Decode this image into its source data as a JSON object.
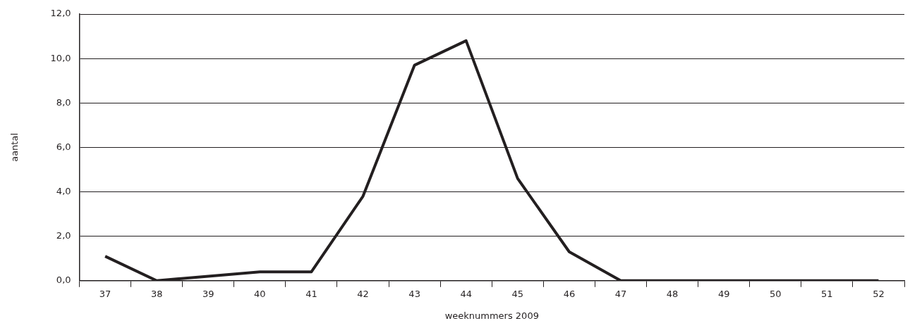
{
  "chart_data": {
    "type": "line",
    "xlabel": "weeknummers 2009",
    "ylabel": "aantal",
    "categories": [
      "37",
      "38",
      "39",
      "40",
      "41",
      "42",
      "43",
      "44",
      "45",
      "46",
      "47",
      "48",
      "49",
      "50",
      "51",
      "52"
    ],
    "series": [
      {
        "color": "#231f20",
        "values": [
          1.1,
          0,
          0.2,
          0.4,
          0.4,
          3.8,
          9.7,
          10.8,
          4.6,
          1.3,
          0,
          0,
          0,
          0,
          0,
          0
        ]
      }
    ],
    "ylim": [
      0,
      12
    ],
    "yticks": [
      {
        "value": 0,
        "label": "0,0"
      },
      {
        "value": 2,
        "label": "2,0"
      },
      {
        "value": 4,
        "label": "4,0"
      },
      {
        "value": 6,
        "label": "6,0"
      },
      {
        "value": 8,
        "label": "8,0"
      },
      {
        "value": 10,
        "label": "10,0"
      },
      {
        "value": 12,
        "label": "12,0"
      }
    ],
    "grid": "y",
    "legend": false,
    "marker": "none",
    "line_style": "solid"
  }
}
